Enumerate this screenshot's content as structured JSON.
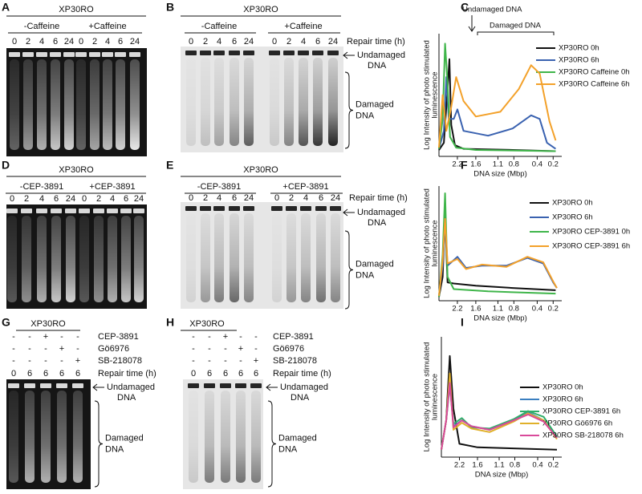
{
  "panels": {
    "A": {
      "label": "A",
      "title": "XP30RO",
      "groups": [
        "-Caffeine",
        "+Caffeine"
      ],
      "lanes": [
        "0",
        "2",
        "4",
        "6",
        "24",
        "0",
        "2",
        "4",
        "6",
        "24"
      ]
    },
    "B": {
      "label": "B",
      "title": "XP30RO",
      "groups": [
        "-Caffeine",
        "+Caffeine"
      ],
      "lanes": [
        "0",
        "2",
        "4",
        "6",
        "24",
        "0",
        "2",
        "4",
        "6",
        "24"
      ],
      "lane_axis": "Repair time (h)",
      "undamaged": [
        "Undamaged",
        "DNA"
      ],
      "damaged": [
        "Damaged",
        "DNA"
      ]
    },
    "C": {
      "label": "C",
      "annotations": [
        "Undamaged DNA",
        "Damaged DNA"
      ],
      "y_axis_label": [
        "Log Intensity of photo stimulated",
        "luminescence"
      ],
      "x_ticks": [
        "2.2",
        "1.6",
        "1.1",
        "0.8",
        "0.4",
        "0.2"
      ],
      "x_axis_label": "DNA size (Mbp)",
      "legend": [
        {
          "name": "XP30RO 0h",
          "color": "#111111"
        },
        {
          "name": "XP30RO 6h",
          "color": "#3a62b0"
        },
        {
          "name": "XP30RO Caffeine 0h",
          "color": "#3fb54a"
        },
        {
          "name": "XP30RO Caffeine 6h",
          "color": "#f3a12a"
        }
      ]
    },
    "D": {
      "label": "D",
      "title": "XP30RO",
      "groups": [
        "-CEP-3891",
        "+CEP-3891"
      ],
      "lanes": [
        "0",
        "2",
        "4",
        "6",
        "24",
        "0",
        "2",
        "4",
        "6",
        "24"
      ]
    },
    "E": {
      "label": "E",
      "title": "XP30RO",
      "groups": [
        "-CEP-3891",
        "+CEP-3891"
      ],
      "lanes": [
        "0",
        "2",
        "4",
        "6",
        "24",
        "0",
        "2",
        "4",
        "6",
        "24"
      ],
      "lane_axis": "Repair time (h)",
      "undamaged": [
        "Undamaged",
        "DNA"
      ],
      "damaged": [
        "Damaged",
        "DNA"
      ]
    },
    "F": {
      "label": "F",
      "y_axis_label": [
        "Log Intensity of photo stimulated",
        "luminescence"
      ],
      "x_ticks": [
        "2.2",
        "1.6",
        "1.1",
        "0.8",
        "0.4",
        "0.2"
      ],
      "x_axis_label": "DNA size (Mbp)",
      "legend": [
        {
          "name": "XP30RO 0h",
          "color": "#111111"
        },
        {
          "name": "XP30RO 6h",
          "color": "#3a62b0"
        },
        {
          "name": "XP30RO CEP-3891 0h",
          "color": "#3fb54a"
        },
        {
          "name": "XP30RO CEP-3891 6h",
          "color": "#f3a12a"
        }
      ]
    },
    "G": {
      "label": "G",
      "title": "XP30RO",
      "treatments": [
        {
          "name": "CEP-3891",
          "marks": [
            "-",
            "-",
            "+",
            "-",
            "-"
          ]
        },
        {
          "name": "Gö6976",
          "marks": [
            "-",
            "-",
            "-",
            "+",
            "-"
          ]
        },
        {
          "name": "SB-218078",
          "marks": [
            "-",
            "-",
            "-",
            "-",
            "+"
          ]
        }
      ],
      "lane_axis": "Repair time (h)",
      "lanes": [
        "0",
        "6",
        "6",
        "6",
        "6"
      ],
      "undamaged": [
        "Undamaged",
        "DNA"
      ],
      "damaged": [
        "Damaged",
        "DNA"
      ]
    },
    "H": {
      "label": "H",
      "title": "XP30RO",
      "treatments": [
        {
          "name": "CEP-3891",
          "marks": [
            "-",
            "-",
            "+",
            "-",
            "-"
          ]
        },
        {
          "name": "Gö6976",
          "marks": [
            "-",
            "-",
            "-",
            "+",
            "-"
          ]
        },
        {
          "name": "SB-218078",
          "marks": [
            "-",
            "-",
            "-",
            "-",
            "+"
          ]
        }
      ],
      "lane_axis": "Repair time (h)",
      "lanes": [
        "0",
        "6",
        "6",
        "6",
        "6"
      ],
      "undamaged": [
        "Undamaged",
        "DNA"
      ],
      "damaged": [
        "Damaged",
        "DNA"
      ]
    },
    "I": {
      "label": "I",
      "y_axis_label": [
        "Log Intensity of photo stimulated",
        "luminescence"
      ],
      "x_ticks": [
        "2.2",
        "1.6",
        "1.1",
        "0.8",
        "0.4",
        "0.2"
      ],
      "x_axis_label": "DNA size (Mbp)",
      "legend": [
        {
          "name": "XP30RO 0h",
          "color": "#111111"
        },
        {
          "name": "XP30RO 6h",
          "color": "#3a7fc0"
        },
        {
          "name": "XP30RO CEP-3891 6h",
          "color": "#2fae6a"
        },
        {
          "name": "XP30RO Gö6976 6h",
          "color": "#e0b02a"
        },
        {
          "name": "XP30RO SB-218078 6h",
          "color": "#d94a9a"
        }
      ]
    }
  }
}
